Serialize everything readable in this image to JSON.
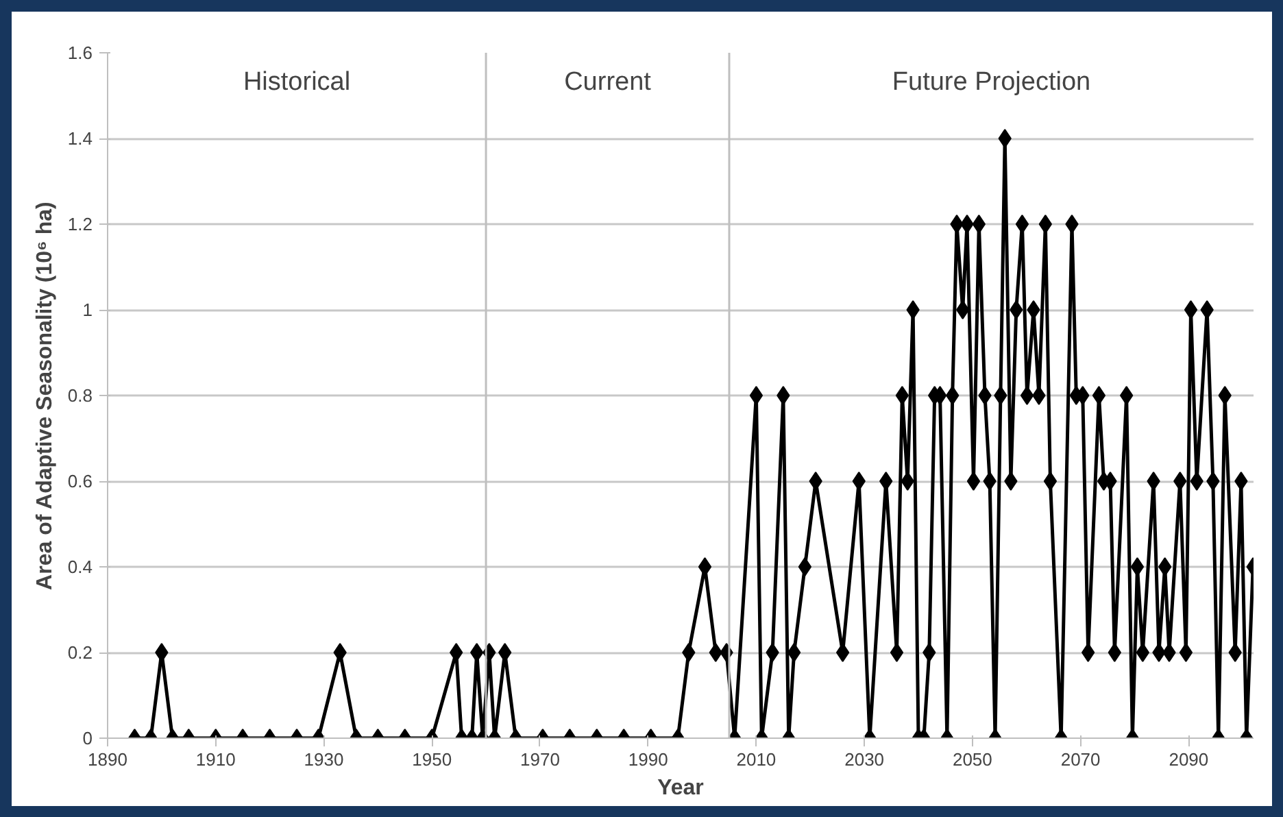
{
  "chart_data": {
    "type": "line",
    "xlabel": "Year",
    "ylabel": "Area of Adaptive Seasonality (10⁶ ha)",
    "x": [
      1895,
      1898,
      1900,
      1902,
      1905,
      1910,
      1915,
      1920,
      1925,
      1929,
      1933,
      1936,
      1940,
      1945,
      1950,
      1954.5,
      1955.5,
      1957.4,
      1958.3,
      1959.4,
      1960.6,
      1961.6,
      1963.5,
      1965.5,
      1970.5,
      1975.5,
      1980.5,
      1985.5,
      1990.5,
      1995.5,
      1997.5,
      2000.5,
      2002.5,
      2004.5,
      2006,
      2010,
      2011,
      2013,
      2015,
      2016,
      2017,
      2019,
      2021,
      2026,
      2029,
      2031,
      2034,
      2036,
      2037,
      2038,
      2039,
      2040,
      2041,
      2042,
      2043,
      2044,
      2045.3,
      2046.3,
      2047.1,
      2048.2,
      2049,
      2050.2,
      2051.2,
      2052.3,
      2053.2,
      2054.2,
      2055.2,
      2056,
      2057.1,
      2058.1,
      2059.2,
      2060.1,
      2061.3,
      2062.3,
      2063.5,
      2064.4,
      2066.4,
      2068.4,
      2069.2,
      2070.4,
      2071.4,
      2073.4,
      2074.3,
      2075.5,
      2076.3,
      2078.5,
      2079.6,
      2080.5,
      2081.5,
      2083.5,
      2084.5,
      2085.6,
      2086.4,
      2088.4,
      2089.5,
      2090.4,
      2091.5,
      2093.4,
      2094.5,
      2095.5,
      2096.7,
      2098.6,
      2099.7,
      2100.7,
      2101.9
    ],
    "series": [
      {
        "color": "#000000",
        "values": [
          0,
          0,
          0.2,
          0,
          0,
          0,
          0,
          0,
          0,
          0,
          0.2,
          0,
          0,
          0,
          0,
          0.2,
          0,
          0,
          0.2,
          0,
          0.2,
          0,
          0.2,
          0,
          0,
          0,
          0,
          0,
          0,
          0,
          0.2,
          0.4,
          0.2,
          0.2,
          0,
          0.8,
          0,
          0.2,
          0.8,
          0,
          0.2,
          0.4,
          0.6,
          0.2,
          0.6,
          0,
          0.6,
          0.2,
          0.8,
          0.6,
          1.0,
          0,
          0,
          0.2,
          0.8,
          0.8,
          0,
          0.8,
          1.2,
          1.0,
          1.2,
          0.6,
          1.2,
          0.8,
          0.6,
          0,
          0.8,
          1.4,
          0.6,
          1.0,
          1.2,
          0.8,
          1.0,
          0.8,
          1.2,
          0.6,
          0,
          1.2,
          0.8,
          0.8,
          0.2,
          0.8,
          0.6,
          0.6,
          0.2,
          0.8,
          0,
          0.4,
          0.2,
          0.6,
          0.2,
          0.4,
          0.2,
          0.6,
          0.2,
          1.0,
          0.6,
          1.0,
          0.6,
          0,
          0.8,
          0.2,
          0.6,
          0,
          0.4
        ]
      }
    ],
    "xlim": [
      1890,
      2102
    ],
    "xticks": [
      1890,
      1910,
      1930,
      1950,
      1970,
      1990,
      2010,
      2030,
      2050,
      2070,
      2090
    ],
    "ylim": [
      0,
      1.6
    ],
    "yticks": [
      0,
      0.2,
      0.4,
      0.6,
      0.8,
      1,
      1.2,
      1.4,
      1.6
    ],
    "ref_lines": [
      {
        "axis": "x",
        "value": 1960,
        "color": "#bfbfbf"
      },
      {
        "axis": "x",
        "value": 2005,
        "color": "#bfbfbf"
      }
    ],
    "annotations": [
      "Historical",
      "Current",
      "Future Projection"
    ],
    "grid": "y",
    "marker": "diamond",
    "line_style": "solid"
  }
}
